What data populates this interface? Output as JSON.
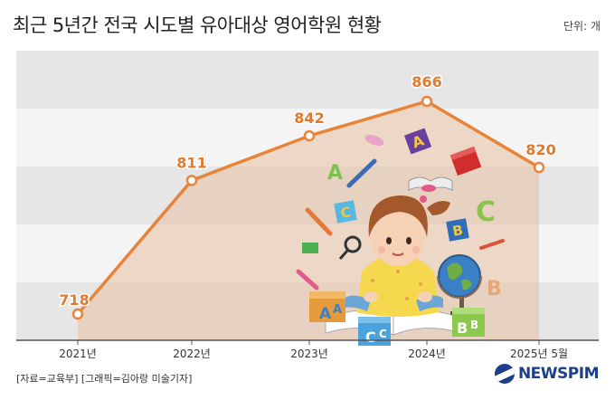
{
  "header": {
    "title": "최근 5년간 전국 시도별 유아대상 영어학원 현황",
    "unit": "단위: 개"
  },
  "footer": {
    "source": "[자료=교육부] [그래픽=김아랑 미술기자]",
    "logo": "NEWSPIM"
  },
  "colors": {
    "line": "#e8843a",
    "band_dark": "#e6e6e6",
    "band_light": "#f4f4f4",
    "area_fill": "#e8bfa2",
    "label": "#e07a2c",
    "logo": "#1b3f8b"
  },
  "chart_data": {
    "type": "line",
    "categories": [
      "2021년",
      "2022년",
      "2023년",
      "2024년",
      "2025년 5월"
    ],
    "series": [
      {
        "values": [
          718,
          811,
          842,
          866,
          820
        ]
      }
    ],
    "data_labels": [
      "718",
      "811",
      "842",
      "866",
      "820"
    ],
    "grid": "horizontal bands",
    "legend": "none"
  },
  "illustration": {
    "subject": "girl-reading-book-with-alphabet-blocks-and-globe",
    "block_letters": [
      "A",
      "A",
      "C",
      "C",
      "B",
      "B",
      "C",
      "B"
    ]
  }
}
